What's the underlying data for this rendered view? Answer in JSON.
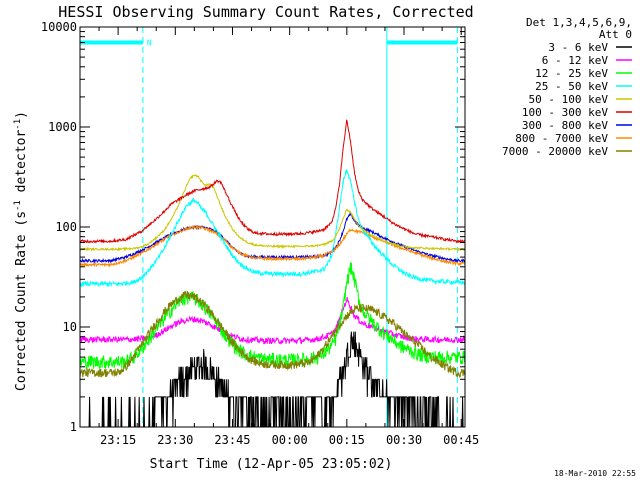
{
  "chart_data": {
    "type": "line",
    "title": "HESSI Observing Summary Count Rates, Corrected",
    "xlabel": "Start Time (12-Apr-05 23:05:02)",
    "ylabel": "Corrected Count Rate (s",
    "ylabel_sup1": "-1",
    "ylabel_mid": " detector",
    "ylabel_sup2": "-1",
    "ylabel_end": ")",
    "y_scale": "log",
    "ylim": [
      1,
      10000
    ],
    "yticks": [
      {
        "value": 1,
        "label": "1"
      },
      {
        "value": 10,
        "label": "10"
      },
      {
        "value": 100,
        "label": "100"
      },
      {
        "value": 1000,
        "label": "1000"
      },
      {
        "value": 10000,
        "label": "10000"
      }
    ],
    "x_unit": "minutes after 23:05:02",
    "xlim": [
      0,
      101
    ],
    "xticks": [
      {
        "value": 10,
        "label": "23:15"
      },
      {
        "value": 25,
        "label": "23:30"
      },
      {
        "value": 40,
        "label": "23:45"
      },
      {
        "value": 55,
        "label": "00:00"
      },
      {
        "value": 70,
        "label": "00:15"
      },
      {
        "value": 85,
        "label": "00:30"
      },
      {
        "value": 100,
        "label": "00:45"
      }
    ],
    "legend_header": [
      "Det 1,3,4,5,6,9,",
      "Att 0"
    ],
    "legend_placement": "right",
    "night_bars": [
      {
        "x0": 0,
        "x1": 16.5,
        "y": 7000,
        "label": "N"
      },
      {
        "x0": 80.5,
        "x1": 99,
        "y": 7000,
        "label": ""
      }
    ],
    "marker_lines": [
      {
        "x": 16.5,
        "style": "dashed"
      },
      {
        "x": 80.5,
        "style": "solid"
      },
      {
        "x": 99,
        "style": "dashed"
      },
      {
        "x": 0,
        "style": "solid"
      }
    ],
    "series": [
      {
        "name": "3 - 6 keV",
        "color": "#000000",
        "noise": 0.35,
        "floor": 1,
        "x": [
          0,
          15,
          16,
          18,
          20,
          22,
          24,
          26,
          28,
          30,
          32,
          34,
          35,
          37,
          39,
          41,
          43,
          46,
          50,
          54,
          58,
          62,
          64,
          66,
          67,
          68,
          69,
          70,
          71,
          72,
          73,
          74,
          75,
          76,
          77,
          78,
          80,
          82,
          84,
          86,
          89,
          99
        ],
        "y": [
          1,
          1,
          1,
          1,
          1.3,
          1.6,
          2.1,
          2.7,
          3.3,
          4,
          4.2,
          3.9,
          3.3,
          2.6,
          2,
          1.6,
          1.3,
          1.2,
          1.3,
          1.2,
          1.3,
          1.4,
          1.6,
          1.8,
          2.2,
          2.8,
          3.6,
          5.5,
          7.5,
          7,
          5.8,
          4.8,
          4,
          3.4,
          2.9,
          2.4,
          2,
          1.7,
          1.5,
          1.3,
          1.2,
          1
        ]
      },
      {
        "name": "6 - 12 keV",
        "color": "#ff00ff",
        "noise": 0.07,
        "floor": 0,
        "x": [
          0,
          12,
          16,
          18,
          20,
          22,
          24,
          26,
          28,
          30,
          32,
          34,
          36,
          38,
          40,
          42,
          44,
          46,
          48,
          52,
          56,
          60,
          62,
          64,
          66,
          67,
          68,
          69,
          70,
          71,
          72,
          74,
          76,
          78,
          80,
          82,
          84,
          86,
          88,
          92,
          99
        ],
        "y": [
          7.5,
          7.5,
          7.6,
          7.8,
          8.3,
          9.2,
          10.2,
          11.2,
          11.8,
          12,
          11.5,
          10.7,
          9.7,
          8.8,
          8.1,
          7.7,
          7.5,
          7.4,
          7.3,
          7.3,
          7.3,
          7.4,
          7.6,
          7.9,
          8.5,
          9.5,
          11.5,
          15,
          19,
          16,
          13,
          11,
          10.2,
          9.5,
          9,
          8.5,
          8.1,
          7.8,
          7.6,
          7.5,
          7.5
        ]
      },
      {
        "name": "12 - 25 keV",
        "color": "#00ff00",
        "noise": 0.16,
        "floor": 0,
        "x": [
          0,
          12,
          14,
          16,
          18,
          20,
          22,
          24,
          26,
          28,
          30,
          32,
          34,
          36,
          38,
          40,
          42,
          44,
          46,
          48,
          52,
          56,
          60,
          62,
          64,
          66,
          67,
          68,
          69,
          70,
          71,
          72,
          73,
          74,
          76,
          78,
          80,
          82,
          84,
          86,
          88,
          90,
          94,
          99
        ],
        "y": [
          4.5,
          4.5,
          5,
          6,
          7.5,
          9.5,
          12,
          15,
          18,
          20,
          19.5,
          17,
          14,
          11,
          8.5,
          6.8,
          5.8,
          5.2,
          5,
          4.8,
          4.7,
          4.7,
          4.8,
          5,
          5.5,
          6.5,
          7.5,
          10,
          15,
          28,
          40,
          30,
          20,
          15,
          12,
          10,
          8.5,
          7.5,
          6.5,
          6,
          5.5,
          5.2,
          5,
          5
        ]
      },
      {
        "name": "25 - 50 keV",
        "color": "#00ffff",
        "noise": 0.05,
        "floor": 0,
        "x": [
          0,
          10,
          14,
          16,
          18,
          20,
          22,
          24,
          26,
          28,
          30,
          31,
          32,
          33,
          34,
          36,
          38,
          40,
          42,
          44,
          46,
          50,
          54,
          58,
          62,
          64,
          65,
          66,
          67,
          68,
          69,
          70,
          71,
          72,
          73,
          74,
          76,
          78,
          80,
          82,
          84,
          86,
          88,
          92,
          99
        ],
        "y": [
          27,
          27,
          28,
          31,
          37,
          46,
          60,
          85,
          120,
          165,
          185,
          170,
          150,
          140,
          120,
          90,
          68,
          52,
          43,
          38,
          35,
          34,
          34,
          34,
          36,
          38,
          43,
          52,
          80,
          150,
          280,
          380,
          280,
          180,
          120,
          95,
          75,
          60,
          50,
          42,
          37,
          33,
          31,
          29,
          28
        ]
      },
      {
        "name": "50 - 100 keV",
        "color": "#c8c800",
        "noise": 0.02,
        "floor": 0,
        "x": [
          0,
          10,
          14,
          16,
          18,
          20,
          22,
          24,
          26,
          28,
          29,
          30,
          31,
          32,
          33,
          34,
          35,
          36,
          38,
          40,
          42,
          44,
          46,
          50,
          54,
          58,
          62,
          64,
          66,
          67,
          68,
          69,
          70,
          71,
          72,
          73,
          74,
          76,
          78,
          80,
          82,
          84,
          86,
          88,
          92,
          99
        ],
        "y": [
          60,
          60,
          61,
          63,
          68,
          78,
          92,
          120,
          170,
          260,
          310,
          330,
          320,
          280,
          260,
          270,
          250,
          200,
          130,
          95,
          78,
          70,
          66,
          64,
          64,
          64,
          65,
          67,
          72,
          80,
          95,
          120,
          150,
          140,
          120,
          105,
          95,
          85,
          78,
          72,
          68,
          65,
          63,
          62,
          61,
          60
        ]
      },
      {
        "name": "100 - 300 keV",
        "color": "#dd0000",
        "noise": 0.03,
        "floor": 0,
        "x": [
          0,
          8,
          12,
          16,
          20,
          24,
          28,
          30,
          32,
          34,
          36,
          37,
          38,
          40,
          42,
          44,
          46,
          50,
          54,
          58,
          62,
          64,
          66,
          67,
          68,
          69,
          70,
          71,
          72,
          73,
          74,
          76,
          78,
          80,
          82,
          84,
          86,
          88,
          92,
          96,
          99
        ],
        "y": [
          72,
          72,
          75,
          90,
          120,
          170,
          210,
          230,
          240,
          250,
          290,
          280,
          230,
          160,
          115,
          95,
          87,
          85,
          85,
          86,
          90,
          95,
          110,
          150,
          250,
          600,
          1180,
          700,
          350,
          230,
          190,
          160,
          140,
          125,
          110,
          100,
          92,
          85,
          80,
          75,
          72
        ]
      },
      {
        "name": "300 - 800 keV",
        "color": "#0000dd",
        "noise": 0.03,
        "floor": 0,
        "x": [
          0,
          8,
          12,
          16,
          20,
          24,
          28,
          30,
          32,
          34,
          36,
          38,
          40,
          42,
          44,
          46,
          50,
          54,
          58,
          62,
          64,
          66,
          67,
          68,
          69,
          70,
          71,
          72,
          73,
          74,
          76,
          78,
          80,
          84,
          88,
          92,
          96,
          99
        ],
        "y": [
          46,
          46,
          50,
          58,
          70,
          85,
          97,
          100,
          100,
          96,
          88,
          76,
          62,
          54,
          51,
          50,
          50,
          50,
          50,
          51,
          52,
          56,
          62,
          72,
          90,
          120,
          135,
          115,
          105,
          98,
          92,
          84,
          77,
          66,
          58,
          52,
          48,
          46
        ]
      },
      {
        "name": "800 - 7000 keV",
        "color": "#ff8800",
        "noise": 0.03,
        "floor": 0,
        "x": [
          0,
          8,
          12,
          16,
          20,
          24,
          28,
          30,
          32,
          34,
          36,
          38,
          40,
          42,
          44,
          46,
          50,
          54,
          58,
          62,
          64,
          66,
          67,
          68,
          69,
          70,
          71,
          72,
          74,
          76,
          78,
          80,
          84,
          88,
          92,
          96,
          99
        ],
        "y": [
          42,
          42,
          46,
          54,
          67,
          83,
          96,
          100,
          98,
          93,
          85,
          74,
          62,
          55,
          51,
          49,
          48,
          48,
          48,
          50,
          52,
          56,
          60,
          66,
          75,
          85,
          95,
          92,
          88,
          82,
          76,
          71,
          62,
          55,
          49,
          45,
          43
        ]
      },
      {
        "name": "7000 - 20000 keV",
        "color": "#808000",
        "noise": 0.1,
        "floor": 0,
        "x": [
          0,
          10,
          12,
          14,
          16,
          18,
          20,
          22,
          24,
          26,
          28,
          30,
          32,
          34,
          36,
          38,
          40,
          42,
          44,
          46,
          48,
          52,
          56,
          60,
          62,
          64,
          66,
          68,
          70,
          72,
          74,
          76,
          78,
          80,
          82,
          84,
          86,
          88,
          90,
          92,
          94,
          96,
          99
        ],
        "y": [
          3.5,
          3.5,
          4,
          5,
          6.5,
          8.5,
          11,
          14,
          17,
          19.5,
          21,
          20,
          17.5,
          14.5,
          11.5,
          9,
          7,
          5.8,
          5,
          4.5,
          4.3,
          4.2,
          4.2,
          4.4,
          5,
          6.2,
          8,
          10.5,
          13,
          15,
          15.5,
          15,
          14,
          12.5,
          11,
          9.5,
          8,
          7,
          6,
          5,
          4.5,
          4,
          3.5
        ]
      }
    ]
  },
  "footer": {
    "timestamp": "18-Mar-2010 22:55"
  }
}
